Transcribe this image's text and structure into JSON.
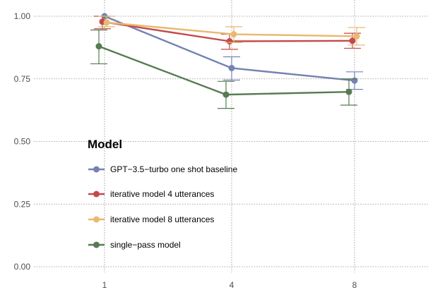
{
  "chart_data": {
    "type": "line",
    "x": [
      1,
      4,
      8
    ],
    "x_tick_labels": [
      "1",
      "4",
      "8"
    ],
    "y_ticks": [
      0.0,
      0.25,
      0.5,
      0.75,
      1.0
    ],
    "y_tick_labels": [
      "0.00",
      "0.25",
      "0.50",
      "0.75",
      "1.00"
    ],
    "ylim": [
      0.0,
      1.0
    ],
    "grid": true,
    "legend": {
      "title": "Model",
      "placement": "inside-center-left"
    },
    "series": [
      {
        "name": "GPT−3.5−turbo one shot baseline",
        "color": "#7483b3",
        "values": [
          1.0,
          0.793,
          0.743
        ],
        "error_low": [
          null,
          0.745,
          0.708
        ],
        "error_high": [
          null,
          0.838,
          0.778
        ]
      },
      {
        "name": "iterative model 4 utterances",
        "color": "#c4494a",
        "values": [
          0.978,
          0.9,
          0.902
        ],
        "error_low": [
          0.95,
          0.868,
          0.872
        ],
        "error_high": [
          1.0,
          0.928,
          0.932
        ]
      },
      {
        "name": "iterative model 8 utterances",
        "color": "#e8b96e",
        "values": [
          0.975,
          0.928,
          0.92
        ],
        "error_low": [
          0.958,
          0.895,
          0.885
        ],
        "error_high": [
          1.0,
          0.958,
          0.955
        ]
      },
      {
        "name": "single−pass model",
        "color": "#577b52",
        "values": [
          0.88,
          0.687,
          0.698
        ],
        "error_low": [
          0.81,
          0.632,
          0.645
        ],
        "error_high": [
          0.945,
          0.74,
          0.75
        ]
      }
    ]
  }
}
